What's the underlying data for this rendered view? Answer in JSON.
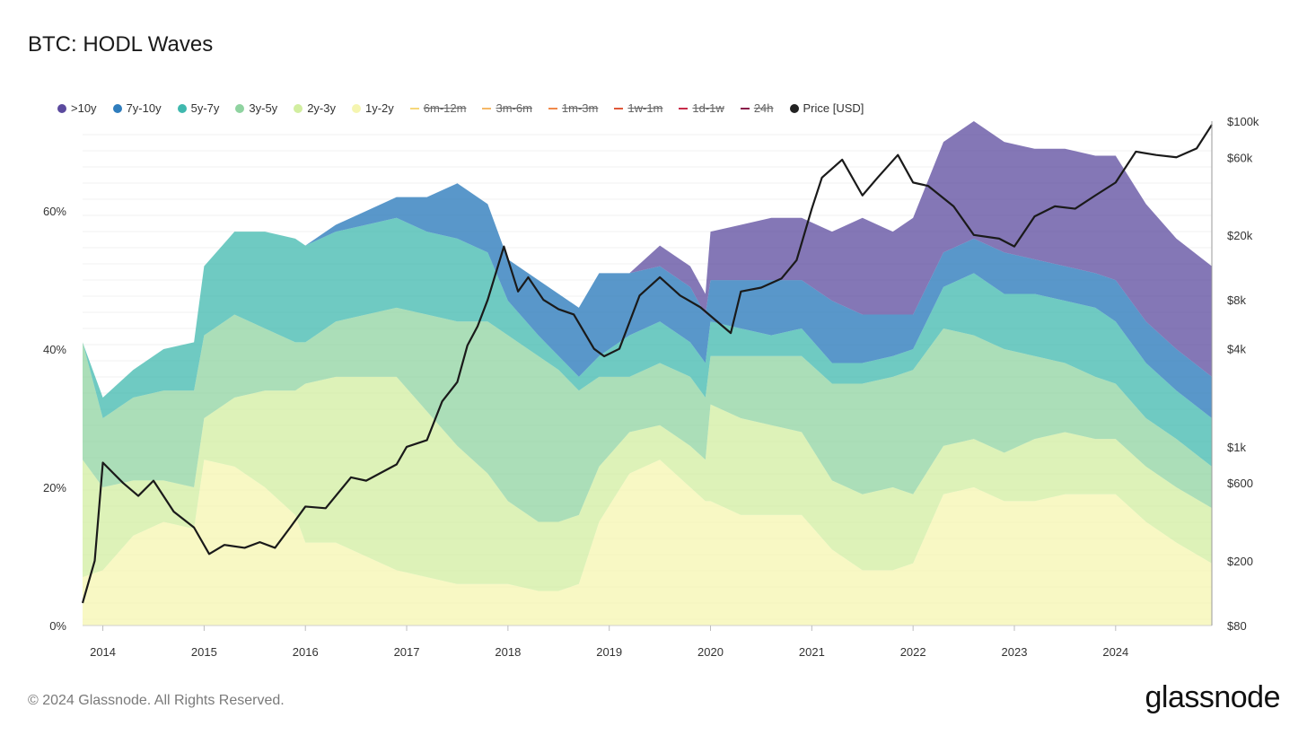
{
  "title": "BTC: HODL Waves",
  "copyright": "© 2024 Glassnode. All Rights Reserved.",
  "brand": "glassnode",
  "legend": [
    {
      "label": ">10y",
      "color": "#5b4a9e",
      "active": true
    },
    {
      "label": "7y-10y",
      "color": "#2f7dbd",
      "active": true
    },
    {
      "label": "5y-7y",
      "color": "#3fb8ae",
      "active": true
    },
    {
      "label": "3y-5y",
      "color": "#8fd3a0",
      "active": true
    },
    {
      "label": "2y-3y",
      "color": "#d2eea0",
      "active": true
    },
    {
      "label": "1y-2y",
      "color": "#f5f5b0",
      "active": true
    },
    {
      "label": "6m-12m",
      "color": "#f6d77a",
      "active": false
    },
    {
      "label": "3m-6m",
      "color": "#f5b867",
      "active": false
    },
    {
      "label": "1m-3m",
      "color": "#f08a4b",
      "active": false
    },
    {
      "label": "1w-1m",
      "color": "#e0583a",
      "active": false
    },
    {
      "label": "1d-1w",
      "color": "#c82c4a",
      "active": false
    },
    {
      "label": "24h",
      "color": "#8a1a4a",
      "active": false
    },
    {
      "label": "Price [USD]",
      "color": "#222222",
      "active": true
    }
  ],
  "chart_data": {
    "type": "area",
    "stacked": true,
    "x": [
      2013.8,
      2014.0,
      2014.3,
      2014.6,
      2014.9,
      2015.0,
      2015.3,
      2015.6,
      2015.9,
      2016.0,
      2016.3,
      2016.6,
      2016.9,
      2017.2,
      2017.5,
      2017.8,
      2018.0,
      2018.3,
      2018.5,
      2018.7,
      2018.9,
      2019.2,
      2019.5,
      2019.8,
      2019.95,
      2020.0,
      2020.3,
      2020.6,
      2020.9,
      2021.2,
      2021.5,
      2021.8,
      2022.0,
      2022.3,
      2022.6,
      2022.9,
      2023.2,
      2023.5,
      2023.8,
      2024.0,
      2024.3,
      2024.6,
      2024.95
    ],
    "series": [
      {
        "name": "1y-2y",
        "values": [
          7,
          8,
          13,
          15,
          14,
          24,
          23,
          20,
          16,
          12,
          12,
          10,
          8,
          7,
          6,
          6,
          6,
          5,
          5,
          6,
          15,
          22,
          24,
          20,
          18,
          18,
          16,
          16,
          16,
          11,
          8,
          8,
          9,
          19,
          20,
          18,
          18,
          19,
          19,
          19,
          15,
          12,
          9
        ]
      },
      {
        "name": "2y-3y",
        "values": [
          17,
          12,
          8,
          6,
          6,
          6,
          10,
          14,
          18,
          23,
          24,
          26,
          28,
          24,
          20,
          16,
          12,
          10,
          10,
          10,
          8,
          6,
          5,
          6,
          6,
          14,
          14,
          13,
          12,
          10,
          11,
          12,
          10,
          7,
          7,
          7,
          9,
          9,
          8,
          8,
          8,
          8,
          8
        ]
      },
      {
        "name": "3y-5y",
        "values": [
          17,
          10,
          12,
          13,
          14,
          12,
          12,
          9,
          7,
          6,
          8,
          9,
          10,
          14,
          18,
          22,
          24,
          24,
          22,
          18,
          13,
          8,
          9,
          10,
          9,
          7,
          9,
          10,
          11,
          14,
          16,
          16,
          18,
          17,
          15,
          15,
          12,
          10,
          9,
          8,
          7,
          7,
          6
        ]
      },
      {
        "name": "5y-7y",
        "values": [
          0,
          3,
          4,
          6,
          7,
          10,
          12,
          14,
          15,
          14,
          13,
          13,
          13,
          12,
          12,
          10,
          5,
          3,
          2,
          2,
          3,
          6,
          6,
          5,
          5,
          5,
          4,
          3,
          4,
          3,
          3,
          3,
          3,
          6,
          9,
          8,
          9,
          9,
          10,
          9,
          8,
          7,
          7
        ]
      },
      {
        "name": "7y-10y",
        "values": [
          0,
          0,
          0,
          0,
          0,
          0,
          0,
          0,
          0,
          0,
          1,
          2,
          3,
          5,
          8,
          7,
          6,
          8,
          9,
          10,
          12,
          9,
          8,
          8,
          7,
          6,
          7,
          8,
          7,
          9,
          7,
          6,
          5,
          5,
          5,
          6,
          5,
          5,
          5,
          6,
          6,
          6,
          6
        ]
      },
      {
        "name": ">10y",
        "values": [
          0,
          0,
          0,
          0,
          0,
          0,
          0,
          0,
          0,
          0,
          0,
          0,
          0,
          0,
          0,
          0,
          0,
          0,
          0,
          0,
          0,
          0,
          3,
          3,
          3,
          7,
          8,
          9,
          9,
          10,
          14,
          12,
          14,
          16,
          17,
          16,
          16,
          17,
          17,
          18,
          17,
          16,
          16
        ]
      }
    ],
    "price": {
      "name": "Price [USD]",
      "x": [
        2013.8,
        2013.92,
        2014.0,
        2014.2,
        2014.35,
        2014.5,
        2014.7,
        2014.9,
        2015.05,
        2015.2,
        2015.4,
        2015.55,
        2015.7,
        2015.85,
        2016.0,
        2016.2,
        2016.45,
        2016.6,
        2016.9,
        2017.0,
        2017.2,
        2017.35,
        2017.5,
        2017.6,
        2017.7,
        2017.8,
        2017.96,
        2018.1,
        2018.2,
        2018.35,
        2018.5,
        2018.65,
        2018.85,
        2018.95,
        2019.1,
        2019.3,
        2019.5,
        2019.7,
        2019.9,
        2020.2,
        2020.3,
        2020.5,
        2020.7,
        2020.85,
        2021.0,
        2021.1,
        2021.3,
        2021.5,
        2021.65,
        2021.85,
        2022.0,
        2022.15,
        2022.4,
        2022.6,
        2022.85,
        2023.0,
        2023.2,
        2023.4,
        2023.6,
        2023.8,
        2024.0,
        2024.2,
        2024.4,
        2024.6,
        2024.8,
        2024.95
      ],
      "values": [
        110,
        200,
        800,
        600,
        500,
        620,
        400,
        320,
        220,
        250,
        240,
        260,
        240,
        320,
        430,
        420,
        650,
        620,
        780,
        1000,
        1100,
        1900,
        2500,
        4200,
        5500,
        8000,
        17000,
        9000,
        11000,
        8000,
        7000,
        6500,
        4000,
        3600,
        4000,
        8500,
        11000,
        8500,
        7200,
        5000,
        9000,
        9500,
        10800,
        14000,
        29000,
        45000,
        58000,
        35000,
        45000,
        62000,
        42000,
        40000,
        30000,
        20000,
        19000,
        17000,
        26000,
        30000,
        29000,
        35000,
        42000,
        65000,
        62000,
        60000,
        68000,
        95000
      ]
    },
    "y_left": {
      "ticks": [
        "0%",
        "20%",
        "40%",
        "60%"
      ],
      "ylim": [
        0,
        73
      ]
    },
    "y_right": {
      "scale": "log",
      "ticks": [
        "$80",
        "$200",
        "$600",
        "$1k",
        "$4k",
        "$8k",
        "$20k",
        "$60k",
        "$100k"
      ],
      "tick_values": [
        80,
        200,
        600,
        1000,
        4000,
        8000,
        20000,
        60000,
        100000
      ],
      "ylim": [
        80,
        100000
      ]
    },
    "x_axis": {
      "ticks": [
        "2014",
        "2015",
        "2016",
        "2017",
        "2018",
        "2019",
        "2020",
        "2021",
        "2022",
        "2023",
        "2024"
      ],
      "xlim": [
        2013.8,
        2024.95
      ]
    },
    "grid": true
  }
}
